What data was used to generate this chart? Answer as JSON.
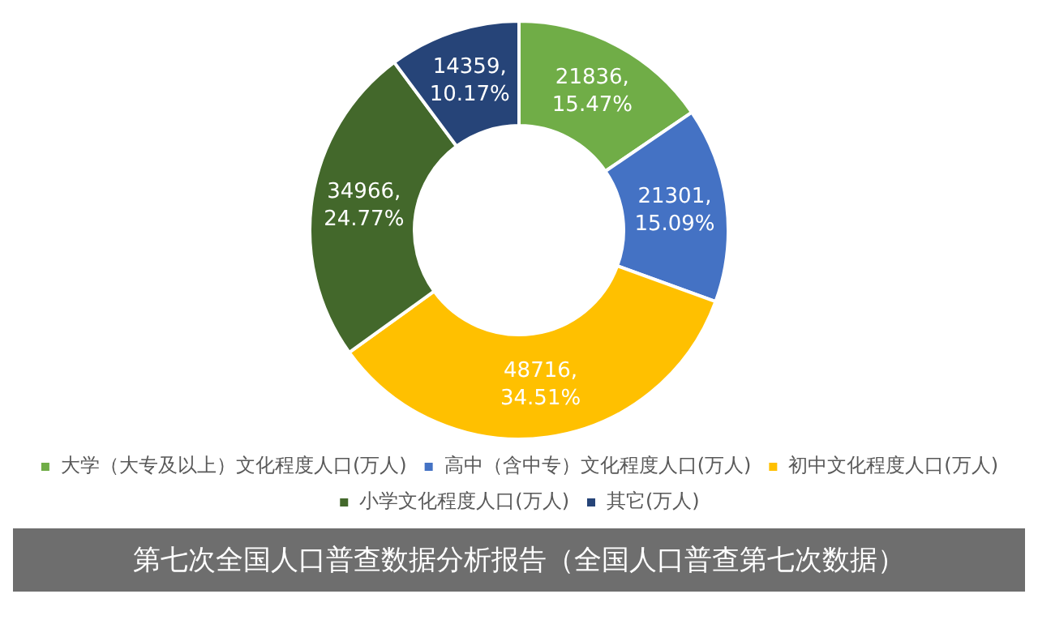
{
  "chart_data": {
    "type": "donut",
    "title": "第七次全国人口普查数据分析报告（全国人口普查第七次数据）",
    "categories": [
      "大学（大专及以上）文化程度人口(万人)",
      "高中（含中专）文化程度人口(万人)",
      "初中文化程度人口(万人)",
      "小学文化程度人口(万人)",
      "其它(万人)"
    ],
    "values": [
      21836,
      21301,
      48716,
      34966,
      14359
    ],
    "colors": [
      "#70ad47",
      "#4472c4",
      "#ffc000",
      "#43682b",
      "#264478"
    ],
    "value_labels": [
      "21836,\n15.47%",
      "21301,\n15.09%",
      "48716,\n34.51%",
      "34966,\n24.77%",
      "14359,\n10.17%"
    ],
    "legend": "bottom"
  }
}
